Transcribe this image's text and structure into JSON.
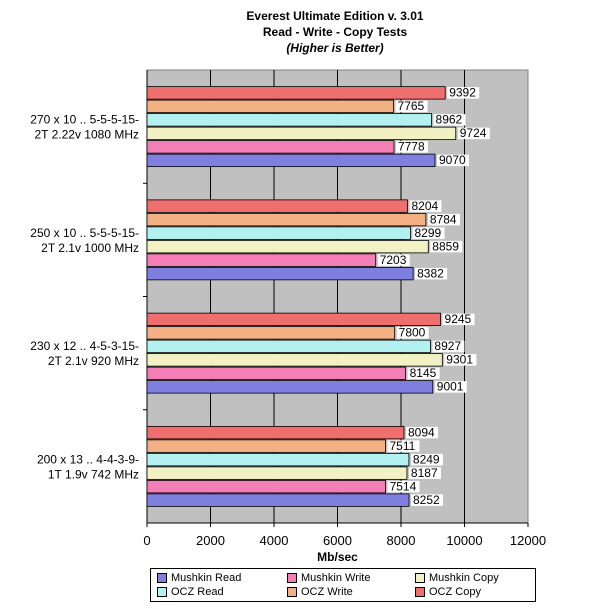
{
  "chart_data": {
    "type": "bar",
    "orientation": "horizontal",
    "title": "Everest Ultimate Edition v. 3.01",
    "subtitle": "Read - Write - Copy Tests",
    "note": "(Higher is Better)",
    "xlabel": "Mb/sec",
    "xlim": [
      0,
      12000
    ],
    "xticks": [
      "0",
      "2000",
      "4000",
      "6000",
      "8000",
      "10000",
      "12000"
    ],
    "grid": "vertical",
    "legend_position": "bottom",
    "categories": [
      [
        "270 x 10 .. 5-5-5-15-",
        "2T  2.22v  1080 MHz"
      ],
      [
        "250 x 10 .. 5-5-5-15-",
        "2T  2.1v  1000 MHz"
      ],
      [
        "230 x 12 .. 4-5-3-15-",
        "2T  2.1v  920 MHz"
      ],
      [
        "200 x 13 .. 4-4-3-9-",
        "1T  1.9v  742 MHz"
      ]
    ],
    "series": [
      {
        "name": "OCZ Copy",
        "color": "#ef6f6f",
        "values": [
          9392,
          8204,
          9245,
          8094
        ]
      },
      {
        "name": "OCZ Write",
        "color": "#f3b183",
        "values": [
          7765,
          8784,
          7800,
          7511
        ]
      },
      {
        "name": "OCZ Read",
        "color": "#b3f0f0",
        "values": [
          8962,
          8299,
          8927,
          8249
        ]
      },
      {
        "name": "Mushkin Copy",
        "color": "#f1f1c3",
        "values": [
          9724,
          8859,
          9301,
          8187
        ]
      },
      {
        "name": "Mushkin Write",
        "color": "#f47fb7",
        "values": [
          7778,
          7203,
          8145,
          7514
        ]
      },
      {
        "name": "Mushkin Read",
        "color": "#7f7fe0",
        "values": [
          9070,
          8382,
          9001,
          8252
        ]
      }
    ],
    "legend": [
      {
        "name": "Mushkin Read",
        "color": "#7f7fe0"
      },
      {
        "name": "Mushkin Write",
        "color": "#f47fb7"
      },
      {
        "name": "Mushkin Copy",
        "color": "#f1f1c3"
      },
      {
        "name": "OCZ Read",
        "color": "#b3f0f0"
      },
      {
        "name": "OCZ Write",
        "color": "#f3b183"
      },
      {
        "name": "OCZ Copy",
        "color": "#ef6f6f"
      }
    ],
    "plot_background": "#c0c0c0"
  }
}
